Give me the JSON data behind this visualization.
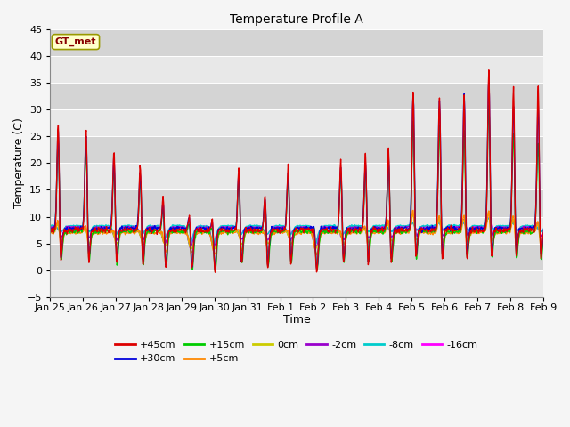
{
  "title": "Temperature Profile A",
  "xlabel": "Time",
  "ylabel": "Temperature (C)",
  "ylim": [
    -5,
    45
  ],
  "yticks": [
    -5,
    0,
    5,
    10,
    15,
    20,
    25,
    30,
    35,
    40,
    45
  ],
  "date_labels": [
    "Jan 25",
    "Jan 26",
    "Jan 27",
    "Jan 28",
    "Jan 29",
    "Jan 30",
    "Jan 31",
    "Feb 1",
    "Feb 2",
    "Feb 3",
    "Feb 4",
    "Feb 5",
    "Feb 6",
    "Feb 7",
    "Feb 8",
    "Feb 9"
  ],
  "legend_entries": [
    "+45cm",
    "+30cm",
    "+15cm",
    "+5cm",
    "0cm",
    "-2cm",
    "-8cm",
    "-16cm"
  ],
  "legend_colors": [
    "#dd0000",
    "#0000dd",
    "#00cc00",
    "#ff8800",
    "#cccc00",
    "#9900cc",
    "#00cccc",
    "#ff00ff"
  ],
  "annotation_text": "GT_met",
  "annotation_bg": "#ffffcc",
  "annotation_border": "#999900",
  "annotation_text_color": "#880000",
  "band_colors": [
    "#e8e8e8",
    "#d8d8d8",
    "#e8e8e8",
    "#d8d8d8",
    "#e8e8e8",
    "#d8d8d8",
    "#e8e8e8",
    "#d8d8d8",
    "#e8e8e8",
    "#d8d8d8"
  ],
  "title_fontsize": 10,
  "n_points": 960
}
